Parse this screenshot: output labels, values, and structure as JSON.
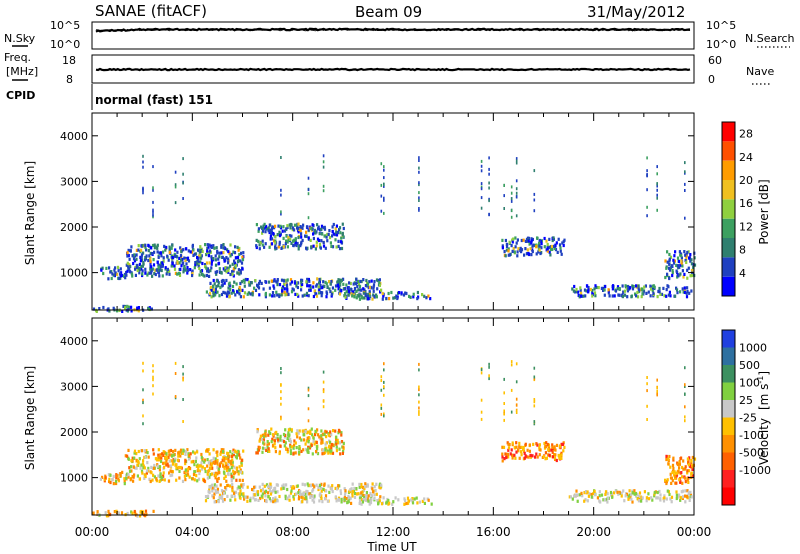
{
  "header": {
    "title": "SANAE (fitACF)",
    "beam": "Beam 09",
    "date": "31/May/2012"
  },
  "noise_panel": {
    "left_label": "N.Sky",
    "right_label": "N.Search",
    "ticks_left": [
      "10^5",
      "10^0"
    ],
    "ticks_right": [
      "10^5",
      "10^0"
    ]
  },
  "freq_panel": {
    "left_label_line1": "Freq.",
    "left_label_line2": "[MHz]",
    "right_label": "Nave",
    "ticks_left": [
      "18",
      "8"
    ],
    "ticks_right": [
      "60",
      "0"
    ]
  },
  "cpid": {
    "label": "CPID",
    "value": "normal (fast) 151"
  },
  "colors": {
    "power_scale": [
      "#0000ff",
      "#1f40c0",
      "#2f7f6f",
      "#3ca060",
      "#8fd03f",
      "#f0c020",
      "#ff9c00",
      "#ff5000",
      "#ff0000"
    ],
    "velocity_scale": [
      "#2040e0",
      "#2e70a0",
      "#3c9060",
      "#80d040",
      "#c8c8c8",
      "#ffc000",
      "#ff9000",
      "#ff6000",
      "#ff2020",
      "#ff0000"
    ]
  },
  "chart_data": [
    {
      "type": "heatmap",
      "title": "Power",
      "ylabel": "Slant Range [km]",
      "xlabel": "Time UT",
      "x_ticks": [
        "00:00",
        "04:00",
        "08:00",
        "12:00",
        "16:00",
        "20:00",
        "00:00"
      ],
      "xlim": [
        0,
        24
      ],
      "ylim": [
        180,
        4500
      ],
      "y_ticks": [
        1000,
        2000,
        3000,
        4000
      ],
      "colorbar": {
        "label": "Power [dB]",
        "ticks": [
          "28",
          "24",
          "20",
          "16",
          "12",
          "8",
          "4"
        ],
        "range": [
          0,
          30
        ]
      },
      "echo_regions": [
        {
          "t_start": 0.3,
          "t_end": 1.3,
          "r_low": 900,
          "r_high": 1150
        },
        {
          "t_start": 1.3,
          "t_end": 6.0,
          "r_low": 950,
          "r_high": 1650
        },
        {
          "t_start": 6.5,
          "t_end": 10.0,
          "r_low": 1550,
          "r_high": 2100
        },
        {
          "t_start": 4.5,
          "t_end": 11.5,
          "r_low": 500,
          "r_high": 900
        },
        {
          "t_start": 10.0,
          "t_end": 13.5,
          "r_low": 450,
          "r_high": 600
        },
        {
          "t_start": 16.3,
          "t_end": 18.8,
          "r_low": 1400,
          "r_high": 1800
        },
        {
          "t_start": 19.0,
          "t_end": 23.9,
          "r_low": 500,
          "r_high": 750
        },
        {
          "t_start": 22.8,
          "t_end": 24.0,
          "r_low": 900,
          "r_high": 1500
        },
        {
          "t_start": 0.0,
          "t_end": 2.5,
          "r_low": 180,
          "r_high": 300
        }
      ]
    },
    {
      "type": "heatmap",
      "title": "Velocity",
      "ylabel": "Slant Range [km]",
      "xlabel": "Time UT",
      "x_ticks": [
        "00:00",
        "04:00",
        "08:00",
        "12:00",
        "16:00",
        "20:00",
        "00:00"
      ],
      "xlim": [
        0,
        24
      ],
      "ylim": [
        180,
        4500
      ],
      "y_ticks": [
        1000,
        2000,
        3000,
        4000
      ],
      "colorbar": {
        "label_main": "Velocity",
        "label_unit": "[m s",
        "label_exp": "-1",
        "label_close": "]",
        "ticks": [
          "1000",
          "500",
          "100",
          "25",
          "-25",
          "-100",
          "-500",
          "-1000"
        ]
      },
      "echo_regions": [
        {
          "t_start": 0.3,
          "t_end": 1.3,
          "r_low": 900,
          "r_high": 1150
        },
        {
          "t_start": 1.3,
          "t_end": 6.0,
          "r_low": 950,
          "r_high": 1650
        },
        {
          "t_start": 6.5,
          "t_end": 10.0,
          "r_low": 1550,
          "r_high": 2100
        },
        {
          "t_start": 4.5,
          "t_end": 11.5,
          "r_low": 500,
          "r_high": 900
        },
        {
          "t_start": 10.0,
          "t_end": 13.5,
          "r_low": 450,
          "r_high": 600
        },
        {
          "t_start": 16.3,
          "t_end": 18.8,
          "r_low": 1400,
          "r_high": 1800
        },
        {
          "t_start": 19.0,
          "t_end": 23.9,
          "r_low": 500,
          "r_high": 750
        },
        {
          "t_start": 22.8,
          "t_end": 24.0,
          "r_low": 900,
          "r_high": 1500
        },
        {
          "t_start": 0.0,
          "t_end": 2.5,
          "r_low": 180,
          "r_high": 300
        }
      ]
    }
  ]
}
